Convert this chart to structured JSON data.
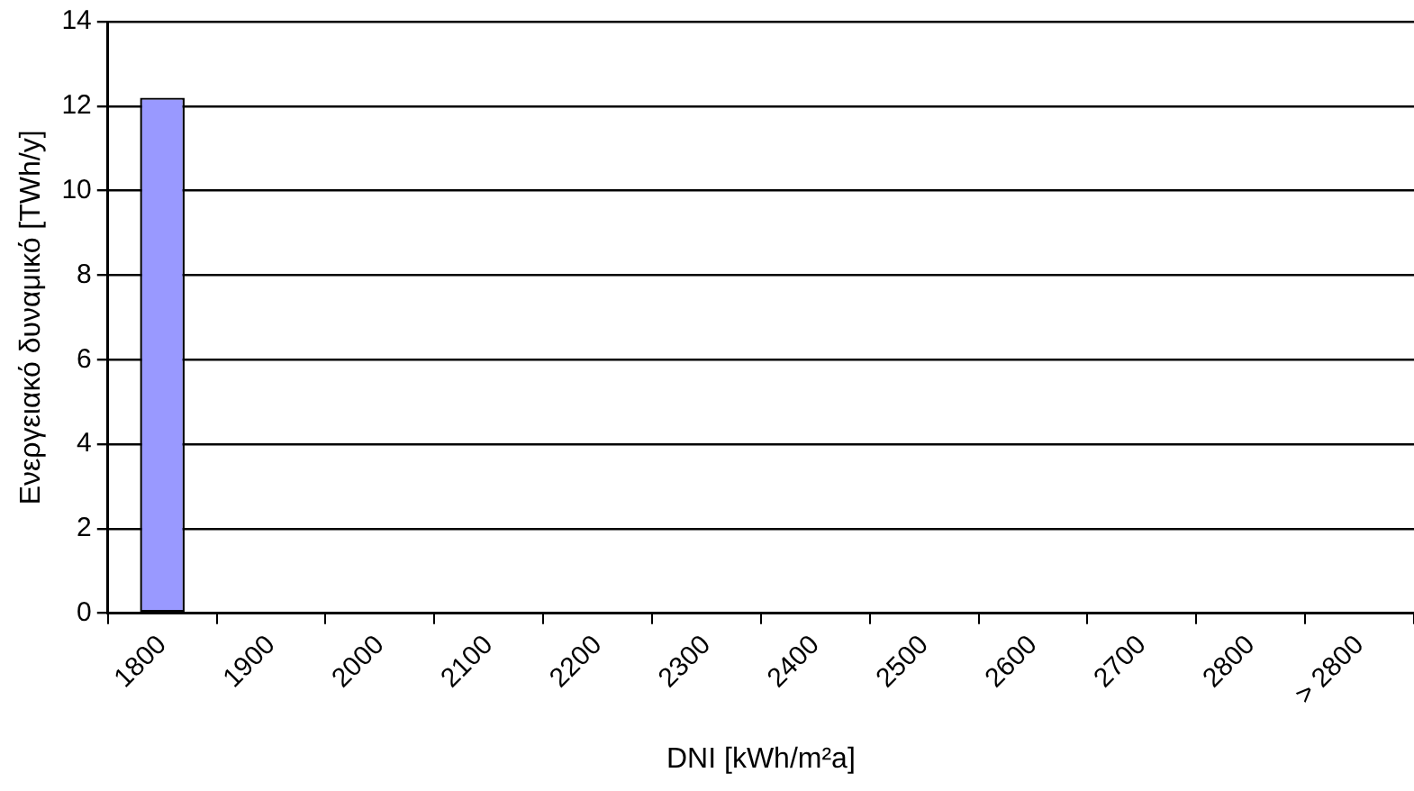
{
  "chart_data": {
    "type": "bar",
    "xlabel": "DNI [kWh/m²a]",
    "ylabel": "Ενεργειακό δυναμικό [TWh/y]",
    "categories": [
      "1800",
      "1900",
      "2000",
      "2100",
      "2200",
      "2300",
      "2400",
      "2500",
      "2600",
      "2700",
      "2800",
      "> 2800"
    ],
    "values": [
      12.2,
      0,
      0,
      0,
      0,
      0,
      0,
      0,
      0,
      0,
      0,
      0
    ],
    "color": "#9999ff",
    "ylim": [
      0,
      14
    ],
    "yticks": [
      0,
      2,
      4,
      6,
      8,
      10,
      12,
      14
    ],
    "grid": "y",
    "legend": false
  }
}
